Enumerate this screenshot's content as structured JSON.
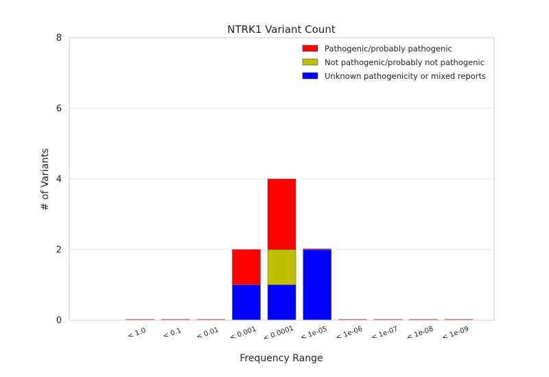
{
  "chart_data": {
    "type": "bar",
    "stacked": true,
    "title": "NTRK1 Variant Count",
    "xlabel": "Frequency Range",
    "ylabel": "# of Variants",
    "ylim": [
      0,
      8
    ],
    "yticks": [
      0,
      2,
      4,
      6,
      8
    ],
    "grid": true,
    "legend_position": "top-right",
    "categories": [
      "< 1.0",
      "< 0.1",
      "< 0.01",
      "< 0.001",
      "< 0.0001",
      "< 1e-05",
      "< 1e-06",
      "< 1e-07",
      "< 1e-08",
      "< 1e-09"
    ],
    "series": [
      {
        "name": "Unknown pathogenicity or mixed reports",
        "color": "#0000ff",
        "values": [
          0,
          0,
          0,
          1,
          1,
          2,
          0,
          0,
          0,
          0
        ]
      },
      {
        "name": "Not pathogenic/probably not pathogenic",
        "color": "#bfbf00",
        "values": [
          0,
          0,
          0,
          0,
          1,
          0,
          0,
          0,
          0,
          0
        ]
      },
      {
        "name": "Pathogenic/probably pathogenic",
        "color": "#ff0000",
        "values": [
          0,
          0,
          0,
          1,
          2,
          0,
          0,
          0,
          0,
          0
        ]
      }
    ],
    "legend_order": [
      2,
      1,
      0
    ]
  }
}
